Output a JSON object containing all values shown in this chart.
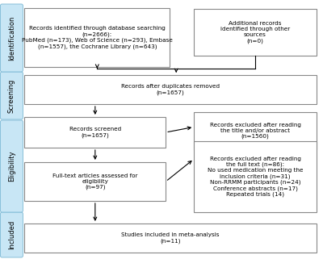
{
  "background_color": "#ffffff",
  "sidebar_color": "#c8e6f5",
  "sidebar_text_color": "#000000",
  "box_face_color": "#ffffff",
  "box_edge_color": "#888888",
  "arrow_color": "#000000",
  "sidebar_labels": [
    "Identification",
    "Screening",
    "Eligibility",
    "Included"
  ],
  "box1_text": "Records identified through database searching\n(n=2666):\nPubMed (n=173), Web of Science (n=293), Embase\n(n=1557), the Cochrane Library (n=643)",
  "box2_text": "Additional records\nidentified through other\nsources\n(n=0)",
  "box3_text": "Records after duplicates removed\n(n=1657)",
  "box4_text": "Records screened\n(n=1657)",
  "box5_text": "Records excluded after reading\nthe title and/or abstract\n(n=1560)",
  "box6_text": "Full-text articles assessed for\neligibility\n(n=97)",
  "box7_text": "Records excluded after reading\nthe full text (n=86):\nNo used medication meeting the\ninclusion criteria (n=31)\nNon-RRMM participants (n=24)\nConference abstracts (n=17)\nRepeated trials (14)",
  "box8_text": "Studies included in meta-analysis\n(n=11)",
  "font_size": 5.2,
  "sidebar_font_size": 6.0
}
